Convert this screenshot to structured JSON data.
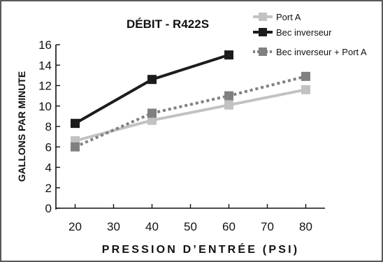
{
  "chart_data": {
    "type": "line",
    "title": "DÉBIT - R422S",
    "xlabel": "PRESSION D’ENTRÉE (PSI)",
    "ylabel": "GALLONS PAR MINUTE",
    "xlim": [
      15,
      85
    ],
    "ylim": [
      0,
      16
    ],
    "xticks": [
      20,
      30,
      40,
      50,
      60,
      70,
      80
    ],
    "yticks": [
      0,
      2,
      4,
      6,
      8,
      10,
      12,
      14,
      16
    ],
    "grid": false,
    "legend_position": "top-right",
    "series": [
      {
        "name": "Port A",
        "color": "#c2c2c2",
        "style": "solid",
        "x": [
          20,
          40,
          60,
          80
        ],
        "y": [
          6.6,
          8.6,
          10.1,
          11.6
        ]
      },
      {
        "name": "Bec inverseur",
        "color": "#1c1c1c",
        "style": "solid",
        "x": [
          20,
          40,
          60
        ],
        "y": [
          8.3,
          12.6,
          15.0
        ]
      },
      {
        "name": "Bec inverseur + Port A",
        "color": "#808080",
        "style": "dotted",
        "x": [
          20,
          40,
          60,
          80
        ],
        "y": [
          6.0,
          9.3,
          11.0,
          12.9
        ]
      }
    ]
  }
}
